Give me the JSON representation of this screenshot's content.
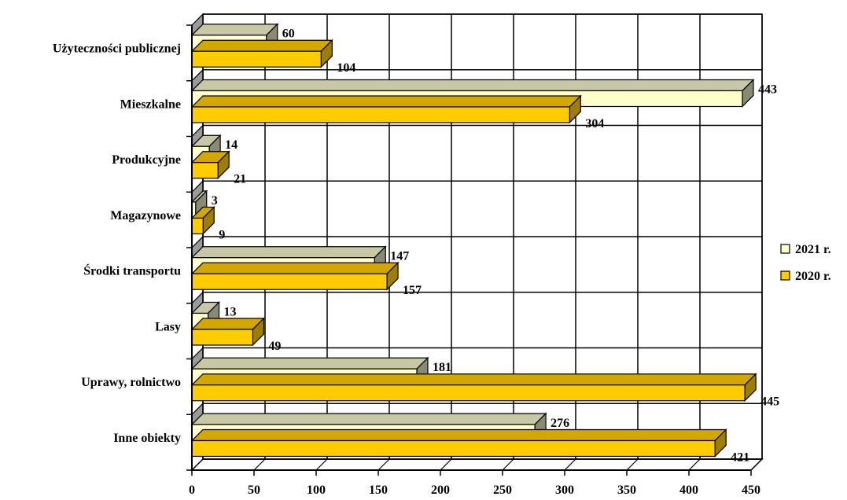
{
  "chart_data": {
    "type": "bar",
    "orientation": "horizontal",
    "style": "3d",
    "categories": [
      "Użyteczności publicznej",
      "Mieszkalne",
      "Produkcyjne",
      "Magazynowe",
      "Środki transportu",
      "Lasy",
      "Uprawy, rolnictwo",
      "Inne obiekty"
    ],
    "series": [
      {
        "name": "2021 r.",
        "color": "#FFFFCC",
        "values": [
          60,
          443,
          14,
          3,
          147,
          13,
          181,
          276
        ]
      },
      {
        "name": "2020 r.",
        "color": "#FFCC00",
        "values": [
          104,
          304,
          21,
          9,
          157,
          49,
          445,
          421
        ]
      }
    ],
    "xlim": [
      0,
      450
    ],
    "xticks": [
      "0",
      "50",
      "100",
      "150",
      "200",
      "250",
      "300",
      "350",
      "400",
      "450"
    ],
    "grid": true,
    "legend_position": "right",
    "title": "",
    "xlabel": "",
    "ylabel": ""
  }
}
